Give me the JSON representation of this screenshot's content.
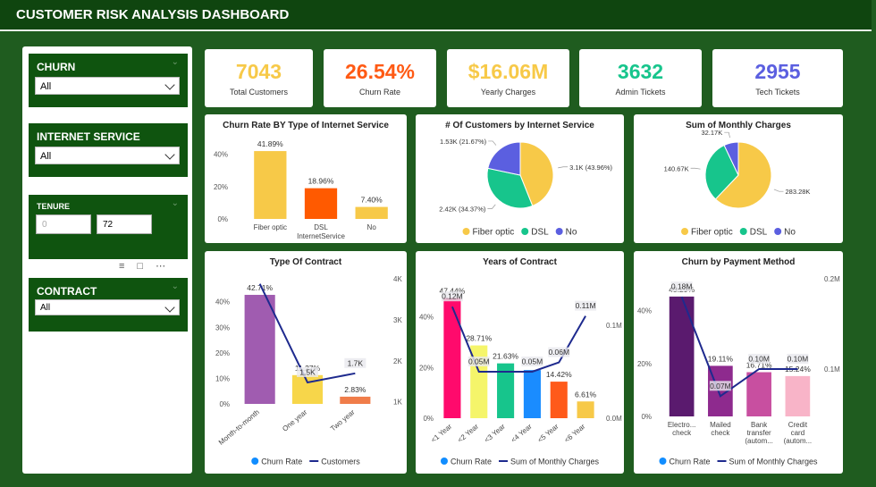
{
  "header": {
    "title": "CUSTOMER RISK ANALYSIS DASHBOARD"
  },
  "filters": [
    {
      "label": "CHURN",
      "value": "All"
    },
    {
      "label": "INTERNET SERVICE",
      "value": "All"
    },
    {
      "label": "TENURE",
      "min": 0,
      "max": 72
    },
    {
      "label": "CONTRACT",
      "value": "All"
    }
  ],
  "kpis": [
    {
      "value": "7043",
      "label": "Total Customers",
      "color": "#f7c948"
    },
    {
      "value": "26.54%",
      "label": "Churn Rate",
      "color": "#ff5a14"
    },
    {
      "value": "$16.06M",
      "label": "Yearly Charges",
      "color": "#f7c948"
    },
    {
      "value": "3632",
      "label": "Admin Tickets",
      "color": "#17c58c"
    },
    {
      "value": "2955",
      "label": "Tech Tickets",
      "color": "#5b5fe0"
    }
  ],
  "chart_data": [
    {
      "type": "bar",
      "title": "Churn Rate BY Type of Internet Service",
      "x_label": "InternetService",
      "categories": [
        "Fiber optic",
        "DSL",
        "No"
      ],
      "values": [
        41.89,
        18.96,
        7.4
      ],
      "value_labels": [
        "41.89%",
        "18.96%",
        "7.40%"
      ],
      "colors": [
        "#f7c948",
        "#ff5a00",
        "#f7c948"
      ],
      "ylim": [
        0,
        48
      ],
      "yticks": [
        {
          "value": 0,
          "label": "0%"
        },
        {
          "value": 20,
          "label": "20%"
        },
        {
          "value": 40,
          "label": "40%"
        }
      ]
    },
    {
      "type": "pie",
      "title": "# Of Customers by Internet Service",
      "categories": [
        "Fiber optic",
        "DSL",
        "No"
      ],
      "values": [
        3096,
        2421,
        1526
      ],
      "value_labels": [
        "3.1K (43.96%)",
        "2.42K (34.37%)",
        "1.53K (21.67%)"
      ],
      "colors": [
        "#f7c948",
        "#17c58c",
        "#5b5fe0"
      ]
    },
    {
      "type": "pie",
      "title": "Sum of Monthly Charges",
      "categories": [
        "Fiber optic",
        "DSL",
        "No"
      ],
      "values": [
        283280,
        140670,
        32170
      ],
      "value_labels": [
        "283.28K",
        "140.67K",
        "32.17K"
      ],
      "colors": [
        "#f7c948",
        "#17c58c",
        "#5b5fe0"
      ]
    },
    {
      "type": "combo",
      "title": "Type Of Contract",
      "categories": [
        "Month-to-month",
        "One year",
        "Two year"
      ],
      "series": [
        {
          "name": "Churn Rate",
          "type": "bar",
          "color": "#118dff",
          "colors": [
            "#a05cb0",
            "#f7d64a",
            "#f07d4a"
          ],
          "values": [
            42.71,
            11.27,
            2.83
          ],
          "value_labels": [
            "42.71%",
            "11.27%",
            "2.83%"
          ]
        },
        {
          "name": "Customers",
          "type": "line",
          "axis": "y2",
          "color": "#1e2a8e",
          "values": [
            3875,
            1473,
            1695
          ],
          "value_labels": [
            null,
            "1.5K",
            "1.7K"
          ]
        }
      ],
      "ylim": [
        0,
        49
      ],
      "yticks": [
        {
          "value": 0,
          "label": "0%"
        },
        {
          "value": 10,
          "label": "10%"
        },
        {
          "value": 20,
          "label": "20%"
        },
        {
          "value": 30,
          "label": "30%"
        },
        {
          "value": 40,
          "label": "40%"
        }
      ],
      "y2lim": [
        950,
        4000
      ],
      "y2ticks": [
        {
          "value": 1000,
          "label": "1K"
        },
        {
          "value": 2000,
          "label": "2K"
        },
        {
          "value": 3000,
          "label": "3K"
        },
        {
          "value": 4000,
          "label": "4K"
        }
      ]
    },
    {
      "type": "combo",
      "title": "Years of Contract",
      "categories": [
        "<1 Year",
        "<2 Year",
        "<3 Year",
        "<4 Year",
        "<5 Year",
        "<6 Year"
      ],
      "series": [
        {
          "name": "Churn Rate",
          "type": "bar",
          "color": "#118dff",
          "colors": [
            "#ff0a6c",
            "#f5f56a",
            "#17c58c",
            "#1a8cff",
            "#ff5a1a",
            "#f7c948"
          ],
          "values": [
            47.44,
            28.71,
            21.63,
            19,
            14.42,
            6.61
          ],
          "value_labels": [
            "47.44%",
            "28.71%",
            "21.63%",
            null,
            "14.42%",
            "6.61%"
          ]
        },
        {
          "name": "Sum of Monthly Charges",
          "type": "line",
          "axis": "y2",
          "color": "#1e2a8e",
          "values": [
            120000,
            50000,
            50000,
            50000,
            60000,
            110000
          ],
          "value_labels": [
            "0.12M",
            "0.05M",
            null,
            "0.05M",
            "0.06M",
            "0.11M"
          ]
        }
      ],
      "ylim": [
        0,
        55
      ],
      "yticks": [
        {
          "value": 0,
          "label": "0%"
        },
        {
          "value": 20,
          "label": "20%"
        },
        {
          "value": 40,
          "label": "40%"
        }
      ],
      "y2lim": [
        0,
        150000
      ],
      "y2ticks": [
        {
          "value": 0,
          "label": "0.0M"
        },
        {
          "value": 100000,
          "label": "0.1M"
        }
      ]
    },
    {
      "type": "combo",
      "title": "Churn by Payment Method",
      "categories": [
        "Electro... check",
        "Mailed check",
        "Bank transfer (autom...",
        "Credit card (autom..."
      ],
      "series": [
        {
          "name": "Churn Rate",
          "type": "bar",
          "color": "#118dff",
          "colors": [
            "#5a1a6e",
            "#8e2a8e",
            "#c84fa0",
            "#f8b4c8"
          ],
          "values": [
            45.29,
            19.11,
            16.71,
            15.24
          ],
          "value_labels": [
            "45.29%",
            "19.11%",
            "16.71%",
            "15.24%"
          ]
        },
        {
          "name": "Sum of Monthly Charges",
          "type": "line",
          "axis": "y2",
          "color": "#1e2a8e",
          "values": [
            180000,
            70000,
            100000,
            100000
          ],
          "value_labels": [
            "0.18M",
            "0.07M",
            "0.10M",
            "0.10M"
          ]
        }
      ],
      "ylim": [
        0,
        52
      ],
      "yticks": [
        {
          "value": 0,
          "label": "0%"
        },
        {
          "value": 20,
          "label": "20%"
        },
        {
          "value": 40,
          "label": "40%"
        }
      ],
      "y2lim": [
        47500,
        200000
      ],
      "y2ticks": [
        {
          "value": 100000,
          "label": "0.1M"
        },
        {
          "value": 200000,
          "label": "0.2M"
        }
      ]
    }
  ]
}
